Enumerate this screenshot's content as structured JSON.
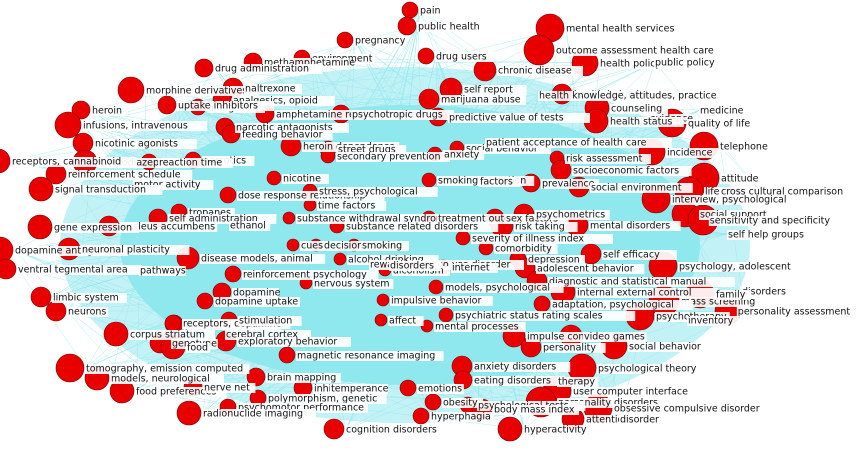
{
  "network": {
    "node_color": "#e80000",
    "edge_color": "#8fe8ee",
    "hub_color": "#8fe8ee",
    "background": "#ffffff",
    "labels": [
      "pain",
      "public health",
      "pregnancy",
      "environment",
      "drug users",
      "mental health services",
      "outcome assessment health care",
      "health policy",
      "public policy",
      "methamphetamine",
      "drug administration",
      "morphine derivatives",
      "naltrexone",
      "analgesics, opioid",
      "analgesics",
      "heroin",
      "uptake inhibitors",
      "amphetamine related disorders",
      "psychotropic drugs",
      "infusions, intravenous",
      "nicotinic agonists",
      "narcotic antagonists",
      "benzodiazepines",
      "chronic disease",
      "self report",
      "marijuana abuse",
      "health behavior",
      "health knowledge, attitudes, practice",
      "counseling",
      "evidence",
      "medicine",
      "quality of life",
      "predictive value of tests",
      "health status",
      "feeding behavior",
      "heroin dependence",
      "street drugs",
      "narcotics",
      "secondary prevention",
      "social behavior",
      "anxiety",
      "patient acceptance of health care",
      "telephone",
      "incidence",
      "receptors, cannabinoid",
      "reaction time",
      "attitude",
      "risk assessment",
      "socioeconomic factors",
      "nicotine",
      "reinforcement schedule",
      "motor activity",
      "signal transduction",
      "dose response relationship",
      "stress, psychological",
      "smoking cessation",
      "factors",
      "prevalence",
      "social environment",
      "life style",
      "cross cultural comparison",
      "time factors",
      "tropanes",
      "self administration",
      "nucleus accumbens",
      "ethanol",
      "gene expression",
      "substance withdrawal syndrome",
      "treatment outcome",
      "sex factors",
      "psychometrics",
      "risk taking",
      "interview, psychological",
      "social support",
      "sensitivity and specificity",
      "self help groups",
      "substance related disorders",
      "severity of illness index",
      "mental disorders",
      "comorbidity",
      "dopamine antagonists",
      "neuronal plasticity",
      "cues",
      "decision making",
      "smoking",
      "alcohol drinking",
      "tobacco use disorder",
      "alcoholism",
      "reward",
      "disorders",
      "self efficacy",
      "depression",
      "psychology, adolescent",
      "disease models, animal",
      "reinforcement psychology",
      "ventral tegmental area",
      "pathways",
      "dopamine",
      "nervous system",
      "internet",
      "adolescent behavior",
      "diagnostic and statistical manual",
      "internal external control",
      "mass screening",
      "disorders",
      "limbic system",
      "neurons",
      "dopamine uptake",
      "prefrontal cortex",
      "family",
      "personality assessment",
      "psychotherapy",
      "impulsive behavior",
      "models, psychological",
      "adaptation, psychological",
      "psychiatric status rating scales",
      "inventory",
      "receptors, dopamine",
      "stimulation",
      "affect",
      "mental processes",
      "impulse control",
      "video games",
      "personality",
      "social behavior",
      "corpus striatum",
      "genotype",
      "food",
      "cerebral cortex",
      "exploratory behavior",
      "magnetic resonance imaging",
      "tomography, emission computed",
      "anxiety disorders",
      "eating disorders",
      "therapy",
      "psychological theory",
      "models, neurological",
      "brain mapping",
      "food preferences",
      "nerve net",
      "inhibition",
      "temperance",
      "emotions",
      "polymorphism, genetic",
      "user computer interface",
      "personality disorders",
      "psychomotor performance",
      "obesity",
      "psychological tests",
      "hyperphagia",
      "body mass index",
      "obsessive compulsive disorder",
      "radionuclide imaging",
      "attention",
      "disorder",
      "hyperactivity",
      "cognition disorders"
    ]
  }
}
